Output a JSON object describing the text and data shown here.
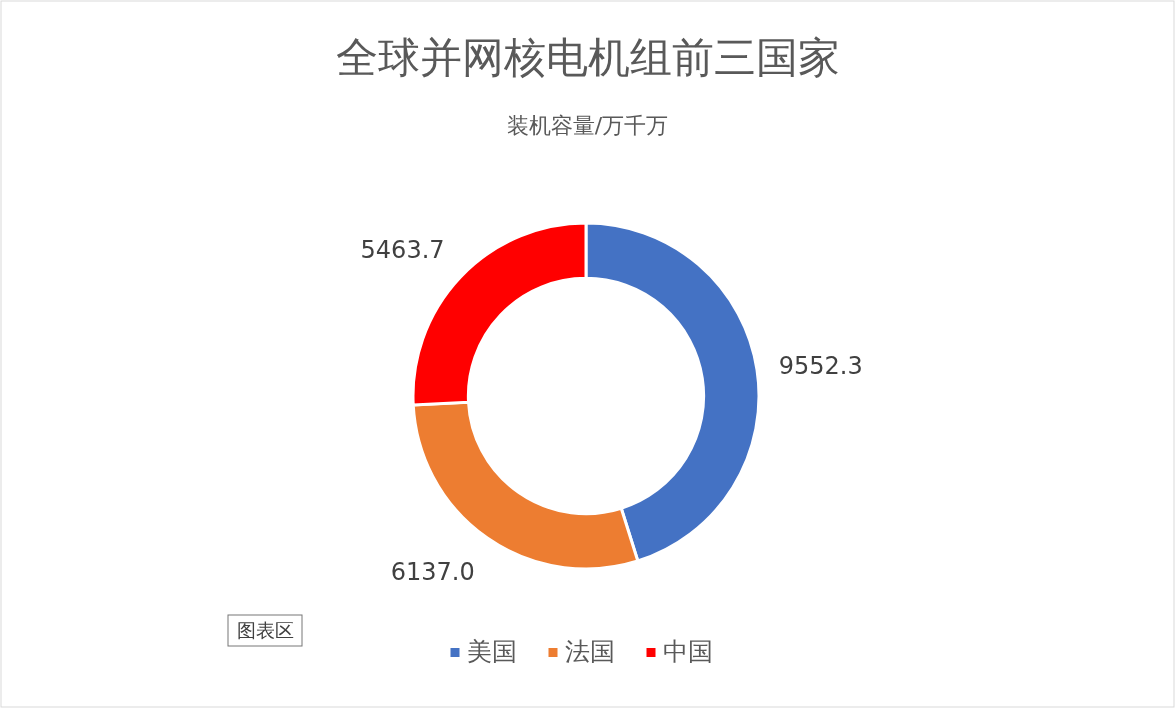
{
  "chart_data": {
    "type": "donut",
    "title": "全球并网核电机组前三国家",
    "subtitle": "装机容量/万千万",
    "categories": [
      "美国",
      "法国",
      "中国"
    ],
    "values": [
      9552.3,
      6137.0,
      5463.7
    ],
    "colors": [
      "#4472c4",
      "#ed7d31",
      "#ff0000"
    ],
    "value_labels": [
      "9552.3",
      "6137.0",
      "5463.7"
    ],
    "legend": "bottom",
    "annotations": [
      "图表区"
    ]
  }
}
